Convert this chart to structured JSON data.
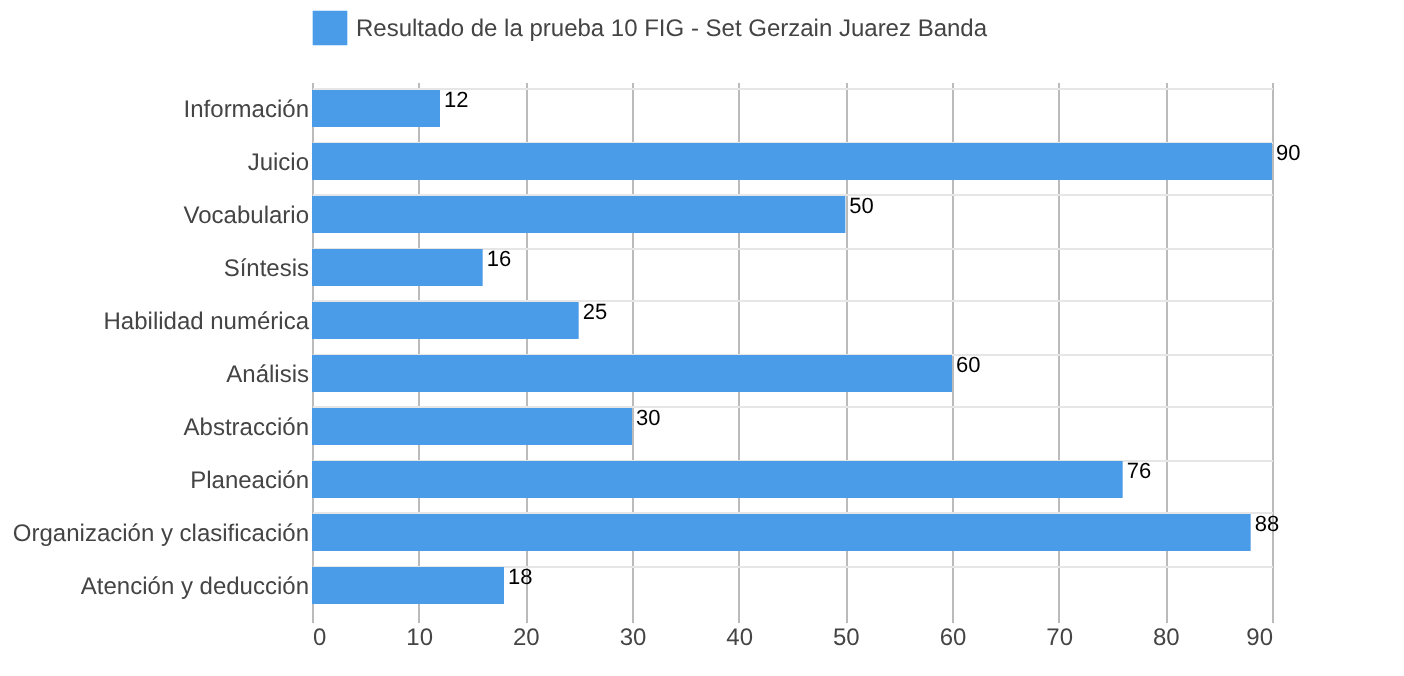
{
  "chart_data": {
    "type": "bar",
    "orientation": "horizontal",
    "categories": [
      "Información",
      "Juicio",
      "Vocabulario",
      "Síntesis",
      "Habilidad numérica",
      "Análisis",
      "Abstracción",
      "Planeación",
      "Organización y clasificación",
      "Atención y deducción"
    ],
    "series": [
      {
        "name": "Resultado de la prueba 10 FIG - Set Gerzain Juarez Banda",
        "color": "#4a9be8",
        "values": [
          12,
          90,
          50,
          16,
          25,
          60,
          30,
          76,
          88,
          18
        ]
      }
    ],
    "xlim": [
      0,
      90
    ],
    "xticks": [
      0,
      10,
      20,
      30,
      40,
      50,
      60,
      70,
      80,
      90
    ],
    "grid": true,
    "legend": "top",
    "data_labels": true
  }
}
